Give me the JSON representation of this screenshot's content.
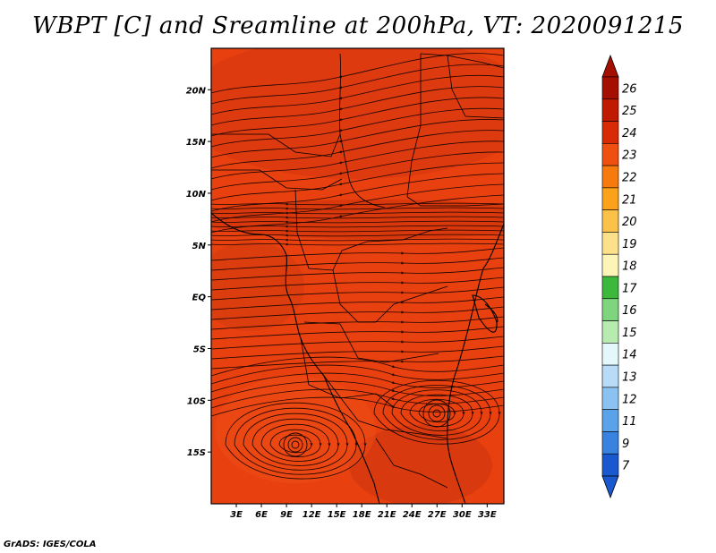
{
  "title": "WBPT [C] and Sreamline at 200hPa, VT: 2020091215",
  "footer": "GrADS: IGES/COLA",
  "map": {
    "lon_range": [
      0,
      35
    ],
    "lat_range": [
      -20,
      24
    ],
    "fill_color": "#e8400f",
    "lat_ticks": [
      {
        "value": 20,
        "label": "20N"
      },
      {
        "value": 15,
        "label": "15N"
      },
      {
        "value": 10,
        "label": "10N"
      },
      {
        "value": 5,
        "label": "5N"
      },
      {
        "value": 0,
        "label": "EQ"
      },
      {
        "value": -5,
        "label": "5S"
      },
      {
        "value": -10,
        "label": "10S"
      },
      {
        "value": -15,
        "label": "15S"
      }
    ],
    "lon_ticks": [
      {
        "value": 3,
        "label": "3E"
      },
      {
        "value": 6,
        "label": "6E"
      },
      {
        "value": 9,
        "label": "9E"
      },
      {
        "value": 12,
        "label": "12E"
      },
      {
        "value": 15,
        "label": "15E"
      },
      {
        "value": 18,
        "label": "18E"
      },
      {
        "value": 21,
        "label": "21E"
      },
      {
        "value": 24,
        "label": "24E"
      },
      {
        "value": 27,
        "label": "27E"
      },
      {
        "value": 30,
        "label": "30E"
      },
      {
        "value": 33,
        "label": "33E"
      }
    ]
  },
  "colorbar": [
    {
      "label": "26",
      "color": "#a50f00"
    },
    {
      "label": "25",
      "color": "#c01a00"
    },
    {
      "label": "24",
      "color": "#d82a05"
    },
    {
      "label": "23",
      "color": "#f0500f"
    },
    {
      "label": "22",
      "color": "#f77a0f"
    },
    {
      "label": "21",
      "color": "#fba21a"
    },
    {
      "label": "20",
      "color": "#fbc24a"
    },
    {
      "label": "19",
      "color": "#fde18a"
    },
    {
      "label": "18",
      "color": "#fdf5b8"
    },
    {
      "label": "17",
      "color": "#3cb83c"
    },
    {
      "label": "16",
      "color": "#7ed57e"
    },
    {
      "label": "15",
      "color": "#b8ebb0"
    },
    {
      "label": "14",
      "color": "#e4f7fa"
    },
    {
      "label": "13",
      "color": "#b8dcf7"
    },
    {
      "label": "12",
      "color": "#8cc2f2"
    },
    {
      "label": "11",
      "color": "#5aa2ea"
    },
    {
      "label": "9",
      "color": "#3a82e0"
    },
    {
      "label": "7",
      "color": "#1a58cf"
    }
  ]
}
